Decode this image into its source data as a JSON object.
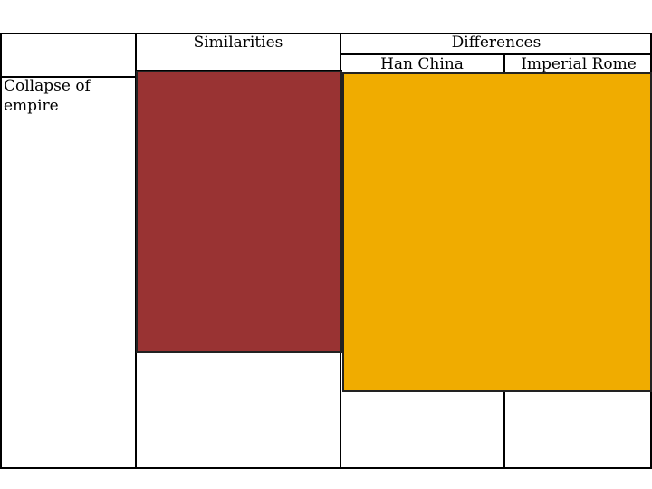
{
  "table": {
    "header": {
      "similarities": "Similarities",
      "differences": "Differences",
      "subheaders": [
        "Han China",
        "Imperial Rome"
      ]
    },
    "rows": [
      {
        "label": "Collapse of empire"
      }
    ]
  }
}
